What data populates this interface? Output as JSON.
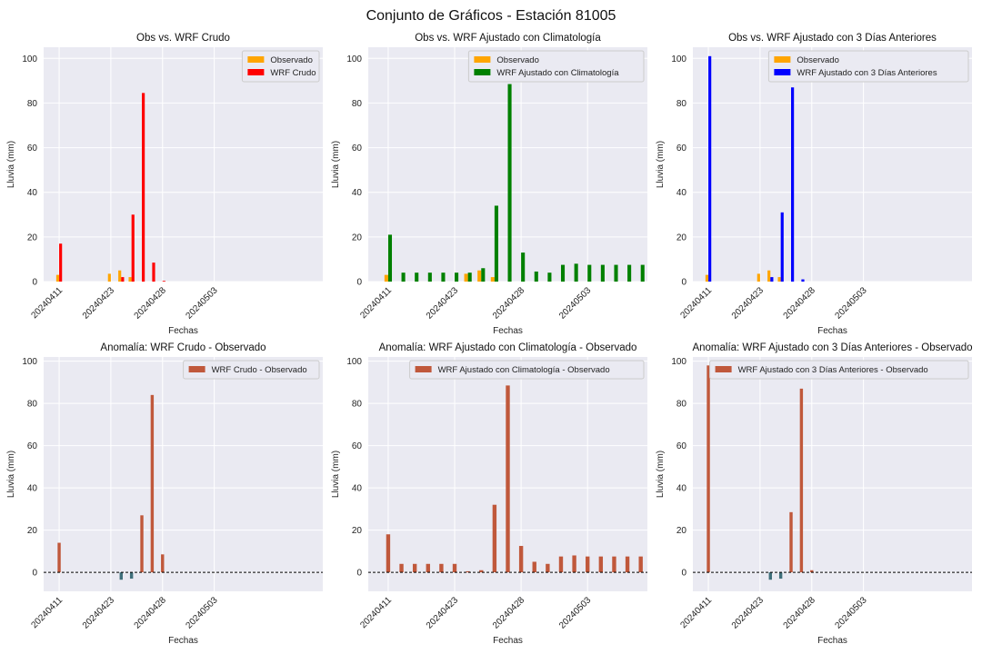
{
  "figure": {
    "title": "Conjunto de Gráficos - Estación 81005",
    "colors": {
      "background": "#eaeaf2",
      "grid": "#ffffff",
      "observado": "#ffa500",
      "wrf_crudo": "#ff0000",
      "wrf_climatologia": "#008000",
      "wrf_3dias": "#0000ff",
      "anomaly_positive": "#c0583b",
      "anomaly_negative": "#3f6f7a",
      "zero_line": "#000000"
    }
  },
  "chart_data": [
    {
      "type": "bar",
      "title": "Obs vs. WRF Crudo",
      "xlabel": "Fechas",
      "ylabel": "Lluvia (mm)",
      "ylim": [
        0,
        105
      ],
      "yticks": [
        0,
        20,
        40,
        60,
        80,
        100
      ],
      "xlim": [
        -1.5,
        25.5
      ],
      "xticks": [
        {
          "x": 0,
          "label": "20240411"
        },
        {
          "x": 5,
          "label": "20240423"
        },
        {
          "x": 10,
          "label": "20240428"
        },
        {
          "x": 15,
          "label": "20240503"
        }
      ],
      "grid": true,
      "legend_position": "upper-right",
      "series": [
        {
          "name": "Observado",
          "color": "#ffa500",
          "x": [
            0,
            5,
            6,
            7
          ],
          "values": [
            3,
            3.5,
            5,
            2
          ]
        },
        {
          "name": "WRF Crudo",
          "color": "#ff0000",
          "x": [
            0,
            6,
            7,
            8,
            9,
            10
          ],
          "values": [
            17,
            2,
            30,
            84.5,
            8.5,
            0.3
          ]
        }
      ]
    },
    {
      "type": "bar",
      "title": "Obs vs. WRF Ajustado con Climatología",
      "xlabel": "Fechas",
      "ylabel": "Lluvia (mm)",
      "ylim": [
        0,
        105
      ],
      "yticks": [
        0,
        20,
        40,
        60,
        80,
        100
      ],
      "xlim": [
        -1.5,
        19.5
      ],
      "xticks": [
        {
          "x": 0,
          "label": "20240411"
        },
        {
          "x": 5,
          "label": "20240423"
        },
        {
          "x": 10,
          "label": "20240428"
        },
        {
          "x": 15,
          "label": "20240503"
        }
      ],
      "grid": true,
      "legend_position": "upper-right",
      "series": [
        {
          "name": "Observado",
          "color": "#ffa500",
          "x": [
            0,
            6,
            7,
            8
          ],
          "values": [
            3,
            3.5,
            5,
            2
          ]
        },
        {
          "name": "WRF Ajustado con Climatología",
          "color": "#008000",
          "x": [
            0,
            1,
            2,
            3,
            4,
            5,
            6,
            7,
            8,
            9,
            10,
            11,
            12,
            13,
            14,
            15,
            16,
            17,
            18,
            19
          ],
          "values": [
            21,
            4,
            4,
            4,
            4,
            4,
            4,
            6,
            34,
            88.5,
            13,
            4.5,
            4,
            7.5,
            8,
            7.5,
            7.5,
            7.5,
            7.5,
            7.5
          ]
        }
      ]
    },
    {
      "type": "bar",
      "title": "Obs vs. WRF Ajustado con 3 Días Anteriores",
      "xlabel": "Fechas",
      "ylabel": "Lluvia (mm)",
      "ylim": [
        0,
        105
      ],
      "yticks": [
        0,
        20,
        40,
        60,
        80,
        100
      ],
      "xlim": [
        -1.5,
        25.5
      ],
      "xticks": [
        {
          "x": 0,
          "label": "20240411"
        },
        {
          "x": 5,
          "label": "20240423"
        },
        {
          "x": 10,
          "label": "20240428"
        },
        {
          "x": 15,
          "label": "20240503"
        }
      ],
      "grid": true,
      "legend_position": "upper-right",
      "series": [
        {
          "name": "Observado",
          "color": "#ffa500",
          "x": [
            0,
            5,
            6,
            7
          ],
          "values": [
            3,
            3.5,
            5,
            2
          ]
        },
        {
          "name": "WRF Ajustado con 3 Días Anteriores",
          "color": "#0000ff",
          "x": [
            0,
            6,
            7,
            8,
            9
          ],
          "values": [
            101,
            2,
            31,
            87,
            1
          ]
        }
      ]
    },
    {
      "type": "bar",
      "title": "Anomalía: WRF Crudo - Observado",
      "xlabel": "Fechas",
      "ylabel": "Lluvia (mm)",
      "ylim": [
        -9,
        102
      ],
      "yticks": [
        0,
        20,
        40,
        60,
        80,
        100
      ],
      "xlim": [
        -1.5,
        25.5
      ],
      "xticks": [
        {
          "x": 0,
          "label": "20240411"
        },
        {
          "x": 5,
          "label": "20240423"
        },
        {
          "x": 10,
          "label": "20240428"
        },
        {
          "x": 15,
          "label": "20240503"
        }
      ],
      "grid": true,
      "zero_line": true,
      "legend_position": "upper-right",
      "series": [
        {
          "name": "WRF Crudo - Observado",
          "color": "#c0583b",
          "negative_color": "#3f6f7a",
          "x": [
            0,
            6,
            7,
            8,
            9,
            10
          ],
          "values": [
            14,
            -3.5,
            -3,
            27,
            84,
            8.5
          ]
        }
      ]
    },
    {
      "type": "bar",
      "title": "Anomalía: WRF Ajustado con Climatología - Observado",
      "xlabel": "Fechas",
      "ylabel": "Lluvia (mm)",
      "ylim": [
        -9,
        102
      ],
      "yticks": [
        0,
        20,
        40,
        60,
        80,
        100
      ],
      "xlim": [
        -1.5,
        19.5
      ],
      "xticks": [
        {
          "x": 0,
          "label": "20240411"
        },
        {
          "x": 5,
          "label": "20240423"
        },
        {
          "x": 10,
          "label": "20240428"
        },
        {
          "x": 15,
          "label": "20240503"
        }
      ],
      "grid": true,
      "zero_line": true,
      "legend_position": "upper-right",
      "series": [
        {
          "name": "WRF Ajustado con Climatología - Observado",
          "color": "#c0583b",
          "negative_color": "#3f6f7a",
          "x": [
            0,
            1,
            2,
            3,
            4,
            5,
            6,
            7,
            8,
            9,
            10,
            11,
            12,
            13,
            14,
            15,
            16,
            17,
            18,
            19
          ],
          "values": [
            18,
            4,
            4,
            4,
            4,
            4,
            0.5,
            1,
            32,
            88.5,
            12.5,
            5,
            4,
            7.5,
            8,
            7.5,
            7.5,
            7.5,
            7.5,
            7.5
          ]
        }
      ]
    },
    {
      "type": "bar",
      "title": "Anomalía: WRF Ajustado con 3 Días Anteriores - Observado",
      "xlabel": "Fechas",
      "ylabel": "Lluvia (mm)",
      "ylim": [
        -9,
        102
      ],
      "yticks": [
        0,
        20,
        40,
        60,
        80,
        100
      ],
      "xlim": [
        -1.5,
        25.5
      ],
      "xticks": [
        {
          "x": 0,
          "label": "20240411"
        },
        {
          "x": 5,
          "label": "20240423"
        },
        {
          "x": 10,
          "label": "20240428"
        },
        {
          "x": 15,
          "label": "20240503"
        }
      ],
      "grid": true,
      "zero_line": true,
      "legend_position": "upper-right",
      "series": [
        {
          "name": "WRF Ajustado con 3 Días Anteriores - Observado",
          "color": "#c0583b",
          "negative_color": "#3f6f7a",
          "x": [
            0,
            6,
            7,
            8,
            9,
            10
          ],
          "values": [
            98,
            -3.5,
            -3,
            28.5,
            87,
            1
          ]
        }
      ]
    }
  ]
}
